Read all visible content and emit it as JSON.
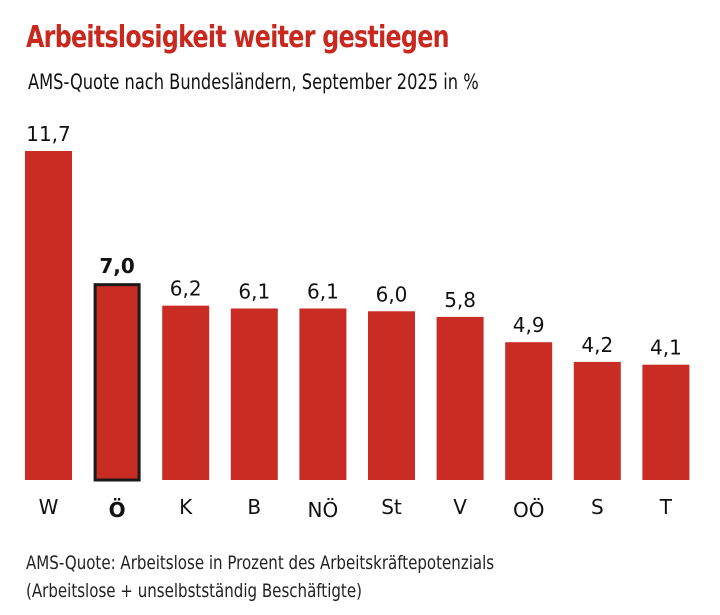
{
  "chart_data": {
    "type": "bar",
    "title": "Arbeitslosigkeit weiter gestiegen",
    "subtitle": "AMS-Quote nach Bundesländern, September 2025 in %",
    "categories": [
      "W",
      "Ö",
      "K",
      "B",
      "NÖ",
      "St",
      "V",
      "OÖ",
      "S",
      "T"
    ],
    "values": [
      11.7,
      7.0,
      6.2,
      6.1,
      6.1,
      6.0,
      5.8,
      4.9,
      4.2,
      4.1
    ],
    "value_labels": [
      "11,7",
      "7,0",
      "6,2",
      "6,1",
      "6,1",
      "6,0",
      "5,8",
      "4,9",
      "4,2",
      "4,1"
    ],
    "highlight": "Ö",
    "xlabel": "",
    "ylabel": "",
    "ylim": [
      0,
      11.7
    ],
    "grid": false,
    "colors": {
      "bar": "#c92c22",
      "highlight_outline": "#1a1a1a",
      "title": "#c8281e"
    }
  },
  "footnote": {
    "line1": "AMS-Quote: Arbeitslose in Prozent des Arbeitskräftepotenzials",
    "line2": "(Arbeitslose + unselbstständig Beschäftigte)"
  }
}
